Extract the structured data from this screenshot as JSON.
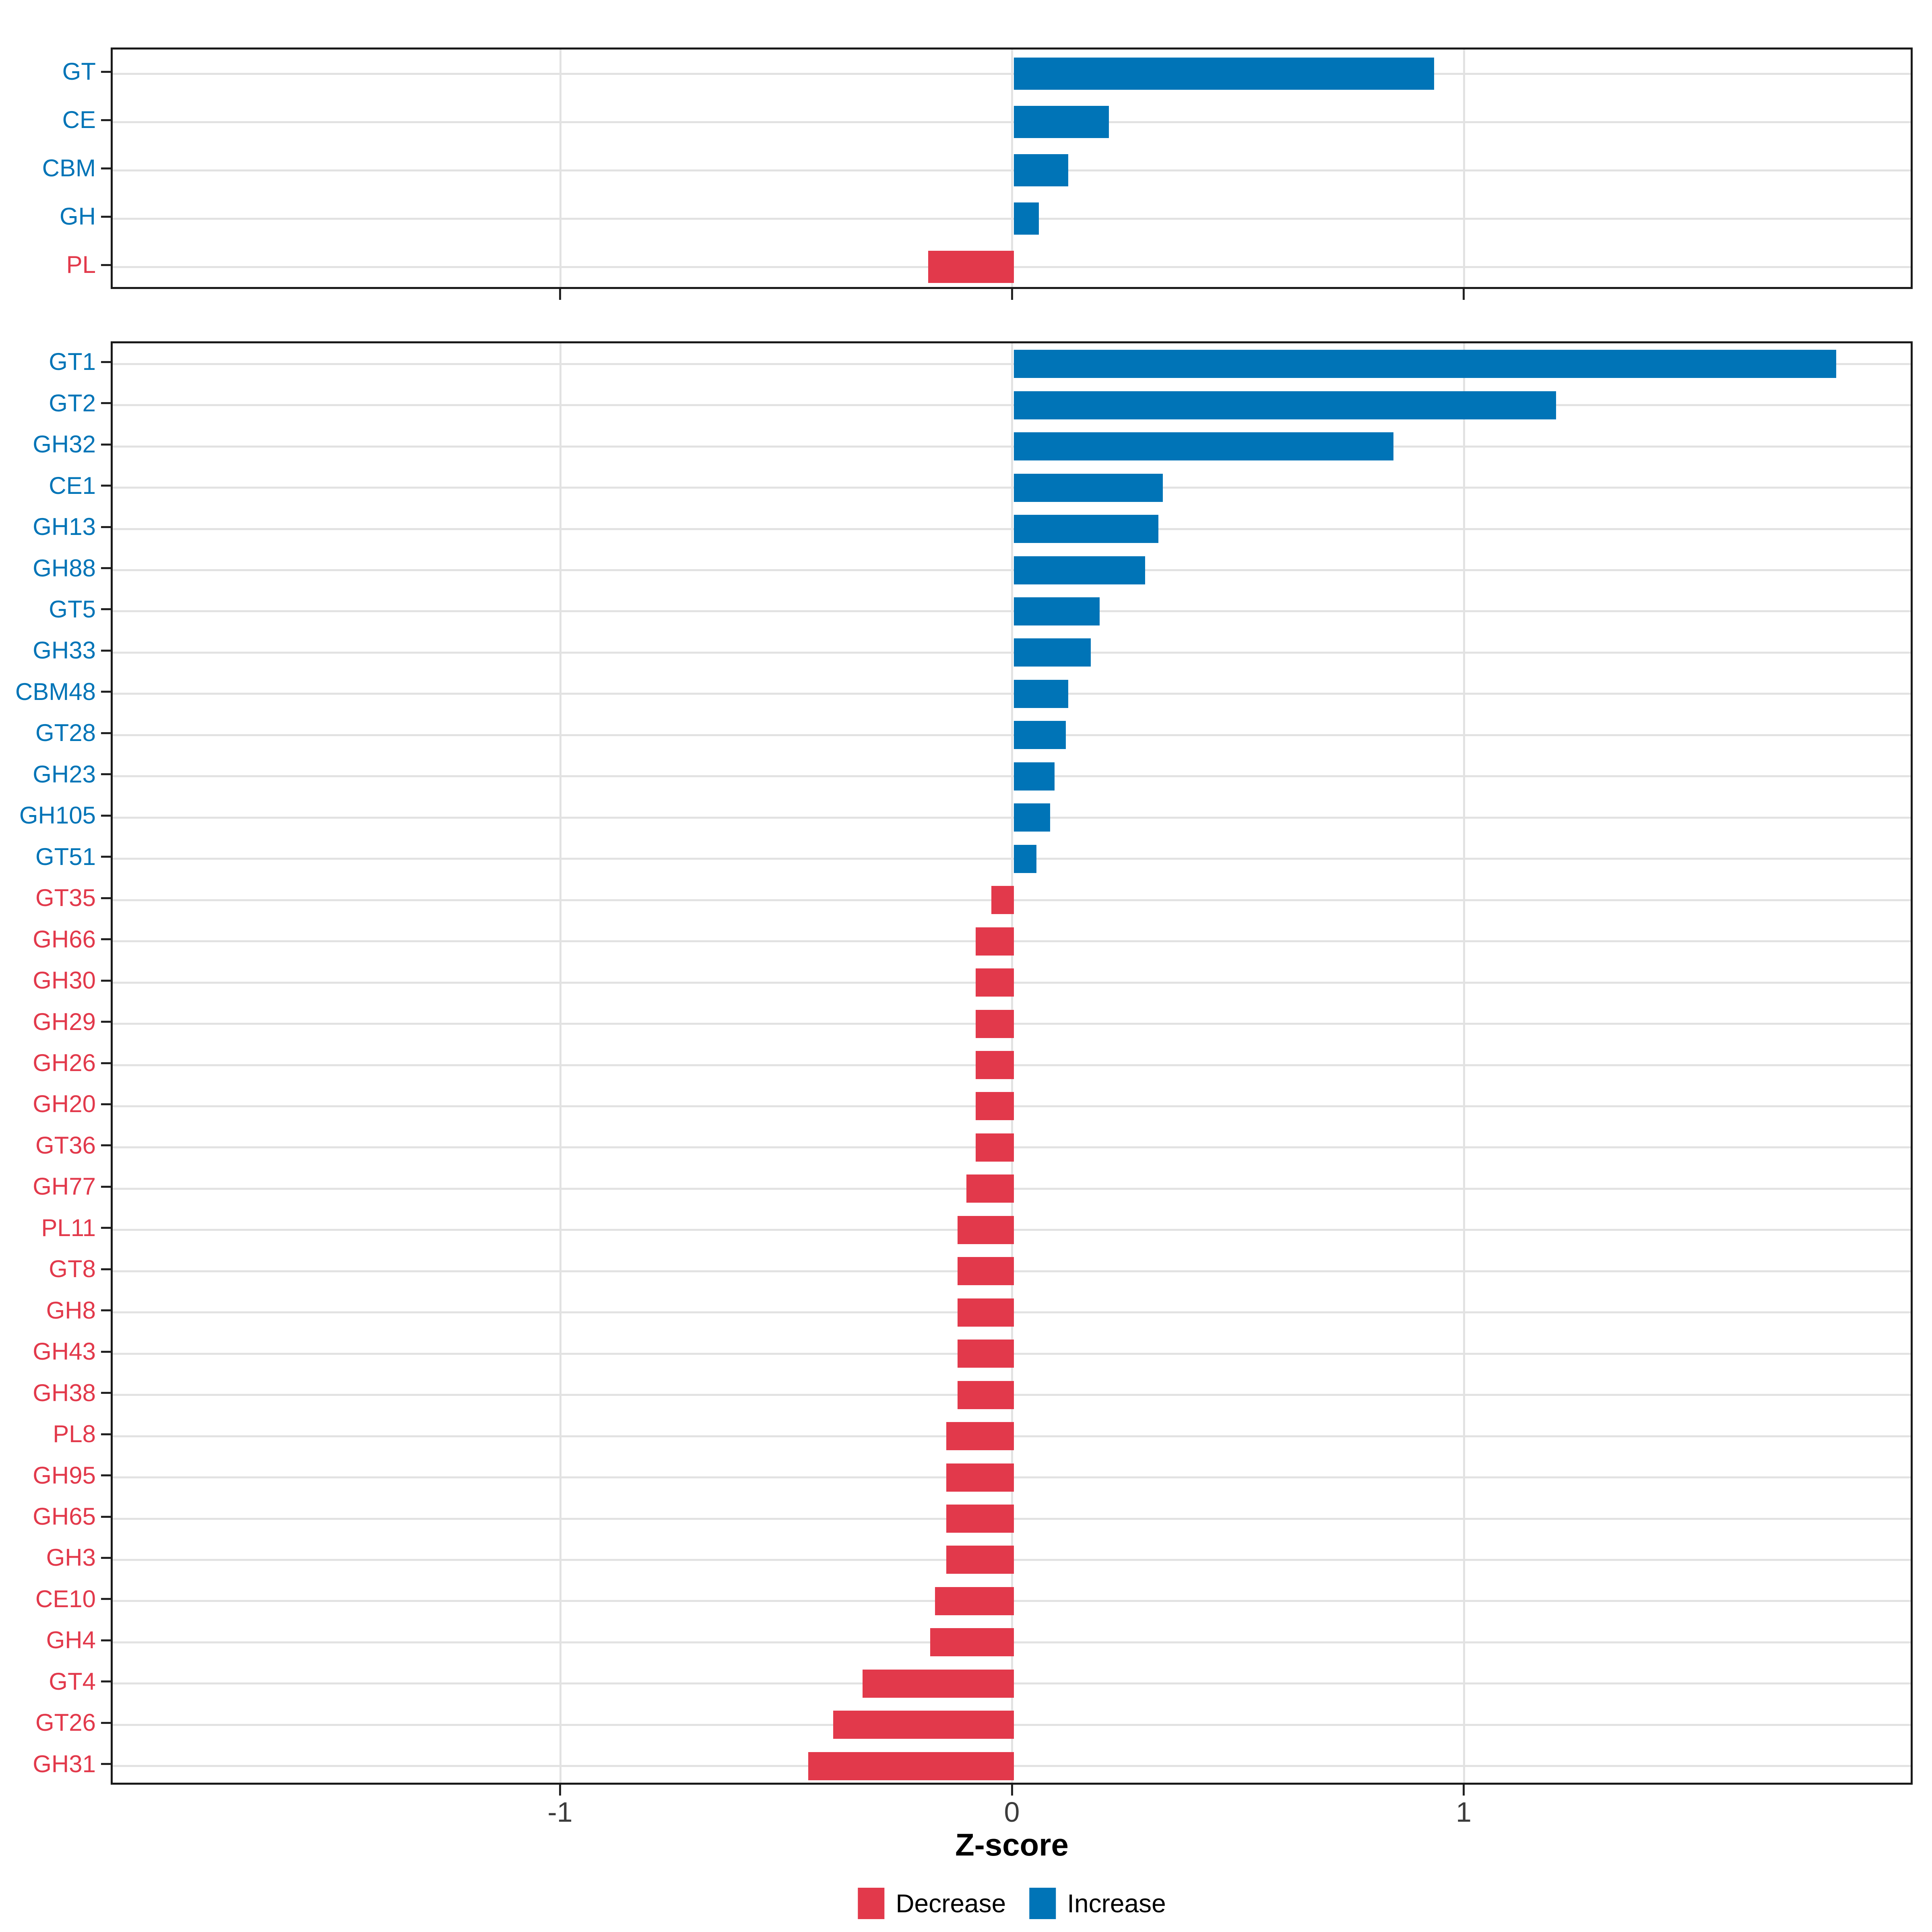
{
  "chart_data": [
    {
      "panel": "top",
      "type": "bar",
      "orientation": "horizontal",
      "xlabel": "Z-score",
      "xlim": [
        -1.99,
        1.99
      ],
      "grid": true,
      "categories": [
        "GT",
        "CE",
        "CBM",
        "GH",
        "PL"
      ],
      "values": [
        0.93,
        0.21,
        0.12,
        0.055,
        -0.19
      ]
    },
    {
      "panel": "bottom",
      "type": "bar",
      "orientation": "horizontal",
      "xlabel": "Z-score",
      "xlim": [
        -1.99,
        1.99
      ],
      "grid": true,
      "categories": [
        "GT1",
        "GT2",
        "GH32",
        "CE1",
        "GH13",
        "GH88",
        "GT5",
        "GH33",
        "CBM48",
        "GT28",
        "GH23",
        "GH105",
        "GT51",
        "GT35",
        "GH66",
        "GH30",
        "GH29",
        "GH26",
        "GH20",
        "GT36",
        "GH77",
        "PL11",
        "GT8",
        "GH8",
        "GH43",
        "GH38",
        "PL8",
        "GH95",
        "GH65",
        "GH3",
        "CE10",
        "GH4",
        "GT4",
        "GT26",
        "GH31"
      ],
      "values": [
        1.82,
        1.2,
        0.84,
        0.33,
        0.32,
        0.29,
        0.19,
        0.17,
        0.12,
        0.115,
        0.09,
        0.08,
        0.05,
        -0.05,
        -0.085,
        -0.085,
        -0.085,
        -0.085,
        -0.085,
        -0.085,
        -0.105,
        -0.125,
        -0.125,
        -0.125,
        -0.125,
        -0.125,
        -0.15,
        -0.15,
        -0.15,
        -0.15,
        -0.175,
        -0.185,
        -0.335,
        -0.4,
        -0.455
      ]
    }
  ],
  "x_axis": {
    "title": "Z-score",
    "ticks": [
      -1,
      0,
      1
    ],
    "tick_labels": [
      "-1",
      "0",
      "1"
    ]
  },
  "legend": {
    "items": [
      {
        "key": "decrease",
        "label": "Decrease",
        "color": "#E2394B"
      },
      {
        "key": "increase",
        "label": "Increase",
        "color": "#0074B7"
      }
    ],
    "position": "bottom"
  },
  "colors": {
    "increase": "#0074B7",
    "decrease": "#E2394B",
    "gridline": "#e2e2e2",
    "panel_border": "#1a1a1a",
    "tick_text": "#3c3c3c"
  }
}
